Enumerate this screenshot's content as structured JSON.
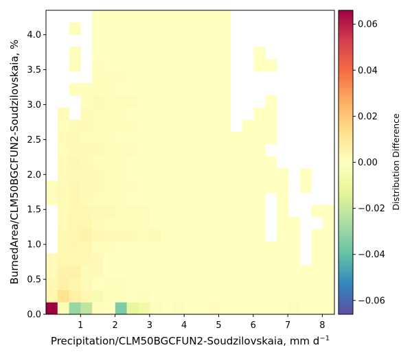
{
  "chart_data": {
    "type": "heatmap",
    "xlabel": "Precipitation/CLM50BGCFUN2-Soudzilovskaia,  mm d",
    "xlabel_superscript": "−1",
    "ylabel": "BurnedArea/CLM50BGCFUN2-Soudzilovskaia,  %",
    "colorbar_label": "Distribution Difference",
    "colormap": "Spectral_r",
    "xlim": [
      0,
      8.35
    ],
    "ylim": [
      0,
      4.35
    ],
    "clim": [
      -0.066,
      0.066
    ],
    "x_ticks": [
      {
        "value": 1,
        "label": "1"
      },
      {
        "value": 2,
        "label": "2"
      },
      {
        "value": 3,
        "label": "3"
      },
      {
        "value": 4,
        "label": "4"
      },
      {
        "value": 5,
        "label": "5"
      },
      {
        "value": 6,
        "label": "6"
      },
      {
        "value": 7,
        "label": "7"
      },
      {
        "value": 8,
        "label": "8"
      }
    ],
    "y_ticks": [
      {
        "value": 0.0,
        "label": "0.0"
      },
      {
        "value": 0.5,
        "label": "0.5"
      },
      {
        "value": 1.0,
        "label": "1.0"
      },
      {
        "value": 1.5,
        "label": "1.5"
      },
      {
        "value": 2.0,
        "label": "2.0"
      },
      {
        "value": 2.5,
        "label": "2.5"
      },
      {
        "value": 3.0,
        "label": "3.0"
      },
      {
        "value": 3.5,
        "label": "3.5"
      },
      {
        "value": 4.0,
        "label": "4.0"
      }
    ],
    "colorbar_ticks": [
      {
        "value": 0.06,
        "label": "0.06"
      },
      {
        "value": 0.04,
        "label": "0.04"
      },
      {
        "value": 0.02,
        "label": "0.02"
      },
      {
        "value": 0.0,
        "label": "0.00"
      },
      {
        "value": -0.02,
        "label": "−0.02"
      },
      {
        "value": -0.04,
        "label": "−0.04"
      },
      {
        "value": -0.06,
        "label": "−0.06"
      }
    ],
    "x_bins": [
      0,
      0.334,
      0.668,
      1.002,
      1.336,
      1.67,
      2.004,
      2.338,
      2.672,
      3.006,
      3.34,
      3.674,
      4.008,
      4.342,
      4.676,
      5.01,
      5.344,
      5.678,
      6.012,
      6.346,
      6.68,
      7.014,
      7.348,
      7.682,
      8.016,
      8.35
    ],
    "y_bins": [
      0,
      0.174,
      0.348,
      0.522,
      0.696,
      0.87,
      1.044,
      1.218,
      1.392,
      1.566,
      1.74,
      1.914,
      2.088,
      2.262,
      2.436,
      2.61,
      2.784,
      2.958,
      3.132,
      3.306,
      3.48,
      3.654,
      3.828,
      4.002,
      4.176,
      4.35
    ],
    "values": [
      [
        0.066,
        -0.003,
        -0.03,
        -0.022,
        0.001,
        0.0,
        -0.035,
        -0.012,
        -0.007,
        -0.002,
        0.0,
        -0.002,
        0.0,
        0.0,
        0.001,
        0.0,
        0.0,
        0.0,
        0.0,
        0.0,
        0.0,
        -0.001,
        0.0,
        0.0,
        0.0
      ],
      [
        0.004,
        0.012,
        0.006,
        0.003,
        -0.004,
        -0.001,
        -0.001,
        0.0,
        -0.001,
        0.0,
        0.0,
        0.0,
        0.0,
        0.0,
        0.0,
        0.0,
        0.0,
        0.0,
        0.0,
        0.0,
        0.0,
        0.0,
        0.0,
        0.0,
        0.0
      ],
      [
        0.003,
        0.006,
        0.004,
        0.002,
        0.0,
        -0.001,
        -0.001,
        0.0,
        0.0,
        0.0,
        0.0,
        0.0,
        0.0,
        0.0,
        0.0,
        0.0,
        0.0,
        0.0,
        0.0,
        0.0,
        0.0,
        0.0,
        0.0,
        0.0,
        0.0
      ],
      [
        0.002,
        0.005,
        0.006,
        0.002,
        0.002,
        0.0,
        0.0,
        0.0,
        0.0,
        0.0,
        0.0,
        0.0,
        0.0,
        0.0,
        0.0,
        0.0,
        0.0,
        0.0,
        0.0,
        0.0,
        0.0,
        0.0,
        0.0,
        0.0,
        0.0
      ],
      [
        0.002,
        0.004,
        0.003,
        0.003,
        0.002,
        0.0,
        0.0,
        0.0,
        0.0,
        0.0,
        0.0,
        0.0,
        0.0,
        0.0,
        0.0,
        0.0,
        0.0,
        0.0,
        0.0,
        0.0,
        0.0,
        0.0,
        null,
        0.0,
        0.0
      ],
      [
        null,
        0.003,
        0.004,
        0.003,
        0.001,
        0.001,
        0.0,
        0.0,
        0.0,
        0.0,
        0.0,
        0.0,
        0.0,
        0.0,
        0.0,
        0.0,
        0.0,
        0.0,
        0.0,
        0.0,
        0.0,
        0.0,
        null,
        0.0,
        0.0
      ],
      [
        null,
        0.003,
        0.004,
        0.005,
        0.003,
        0.002,
        0.002,
        0.002,
        0.001,
        0.002,
        0.0,
        0.0,
        0.0,
        0.0,
        0.0,
        0.0,
        0.0,
        0.0,
        0.0,
        null,
        0.0,
        0.0,
        null,
        0.0,
        0.0
      ],
      [
        null,
        0.002,
        0.004,
        0.004,
        0.002,
        0.001,
        0.001,
        0.001,
        0.001,
        0.0,
        0.0,
        0.0,
        0.0,
        0.0,
        0.0,
        0.0,
        0.0,
        0.0,
        0.0,
        null,
        0.0,
        0.0,
        null,
        null,
        0.0
      ],
      [
        null,
        0.002,
        0.003,
        0.003,
        0.002,
        0.002,
        0.001,
        0.001,
        0.001,
        0.0,
        0.0,
        0.0,
        0.0,
        0.0,
        0.0,
        0.0,
        0.0,
        0.0,
        0.0,
        null,
        0.0,
        null,
        null,
        0.0,
        0.0
      ],
      [
        0.001,
        0.002,
        0.003,
        0.002,
        0.001,
        0.001,
        0.001,
        0.0,
        0.0,
        0.0,
        0.0,
        0.0,
        0.0,
        0.0,
        0.0,
        0.0,
        0.0,
        0.0,
        0.0,
        null,
        0.0,
        null,
        null,
        null,
        null
      ],
      [
        0.001,
        0.002,
        0.003,
        0.002,
        0.002,
        0.001,
        0.001,
        0.001,
        0.0,
        0.0,
        0.0,
        0.0,
        0.0,
        0.0,
        0.0,
        0.0,
        0.0,
        0.0,
        0.0,
        0.0,
        0.0,
        null,
        0.0,
        null,
        null
      ],
      [
        null,
        0.002,
        0.002,
        0.002,
        0.002,
        0.001,
        0.001,
        0.0,
        0.0,
        0.0,
        0.0,
        0.0,
        0.0,
        0.0,
        0.0,
        0.0,
        0.0,
        0.0,
        0.0,
        0.0,
        0.0,
        null,
        0.0,
        null,
        null
      ],
      [
        null,
        0.002,
        0.003,
        0.002,
        0.001,
        0.001,
        0.001,
        0.0,
        0.0,
        0.0,
        0.0,
        0.0,
        0.0,
        0.0,
        0.0,
        0.0,
        0.0,
        0.0,
        0.0,
        0.0,
        null,
        null,
        null,
        null,
        null
      ],
      [
        null,
        0.001,
        0.002,
        0.002,
        0.002,
        0.001,
        0.001,
        0.001,
        0.0,
        0.0,
        0.0,
        0.0,
        0.0,
        0.0,
        0.0,
        0.0,
        0.0,
        0.0,
        0.0,
        null,
        null,
        null,
        null,
        null,
        null
      ],
      [
        null,
        0.002,
        0.002,
        0.001,
        0.001,
        0.001,
        0.0,
        0.0,
        0.0,
        0.0,
        0.0,
        0.0,
        0.0,
        0.0,
        0.0,
        0.0,
        0.0,
        0.0,
        0.0,
        0.0,
        null,
        null,
        null,
        null,
        null
      ],
      [
        null,
        0.001,
        0.002,
        0.002,
        0.001,
        0.001,
        0.001,
        0.001,
        0.0,
        0.0,
        0.0,
        0.0,
        0.0,
        0.0,
        0.0,
        0.0,
        null,
        0.0,
        0.0,
        0.0,
        null,
        null,
        null,
        null,
        null
      ],
      [
        null,
        0.002,
        null,
        0.002,
        0.001,
        0.001,
        0.001,
        0.0,
        0.0,
        0.0,
        0.0,
        0.0,
        0.0,
        0.0,
        0.0,
        0.0,
        null,
        null,
        0.0,
        0.0,
        null,
        null,
        null,
        null,
        null
      ],
      [
        null,
        null,
        null,
        0.001,
        0.002,
        0.001,
        0.001,
        0.001,
        0.0,
        0.0,
        0.0,
        0.0,
        0.0,
        0.0,
        0.0,
        0.0,
        null,
        null,
        null,
        0.0,
        null,
        null,
        null,
        null,
        null
      ],
      [
        null,
        null,
        0.001,
        0.001,
        0.001,
        0.001,
        0.0,
        0.0,
        0.0,
        0.0,
        0.0,
        0.0,
        0.0,
        0.0,
        0.0,
        0.0,
        null,
        null,
        null,
        null,
        null,
        null,
        null,
        null,
        null
      ],
      [
        null,
        null,
        null,
        null,
        0.001,
        0.001,
        0.001,
        0.0,
        0.0,
        0.0,
        0.0,
        0.0,
        0.0,
        0.0,
        0.0,
        0.0,
        null,
        null,
        null,
        null,
        null,
        null,
        null,
        null,
        null
      ],
      [
        null,
        null,
        0.001,
        null,
        0.001,
        0.0,
        0.0,
        0.0,
        0.0,
        0.0,
        0.0,
        0.0,
        0.0,
        0.0,
        0.0,
        0.0,
        null,
        null,
        0.0,
        0.0,
        null,
        null,
        null,
        null,
        null
      ],
      [
        null,
        null,
        0.001,
        null,
        0.0,
        0.0,
        0.0,
        0.0,
        0.0,
        0.0,
        0.0,
        0.0,
        0.0,
        0.0,
        0.0,
        0.0,
        null,
        null,
        0.0,
        null,
        null,
        null,
        null,
        null,
        null
      ],
      [
        null,
        null,
        null,
        null,
        0.0,
        0.0,
        0.0,
        0.0,
        0.0,
        0.0,
        0.0,
        0.0,
        0.0,
        0.0,
        0.0,
        0.0,
        null,
        null,
        null,
        null,
        null,
        null,
        null,
        null,
        null
      ],
      [
        null,
        null,
        0.001,
        null,
        0.0,
        0.0,
        0.0,
        0.0,
        0.0,
        0.0,
        0.0,
        0.0,
        0.0,
        0.0,
        0.0,
        0.0,
        null,
        null,
        null,
        null,
        null,
        null,
        null,
        null,
        null
      ],
      [
        null,
        null,
        null,
        null,
        0.0,
        0.0,
        0.0,
        0.0,
        0.0,
        0.0,
        0.0,
        0.0,
        0.0,
        0.0,
        0.0,
        0.0,
        null,
        null,
        null,
        null,
        null,
        null,
        null,
        null,
        null
      ]
    ]
  }
}
